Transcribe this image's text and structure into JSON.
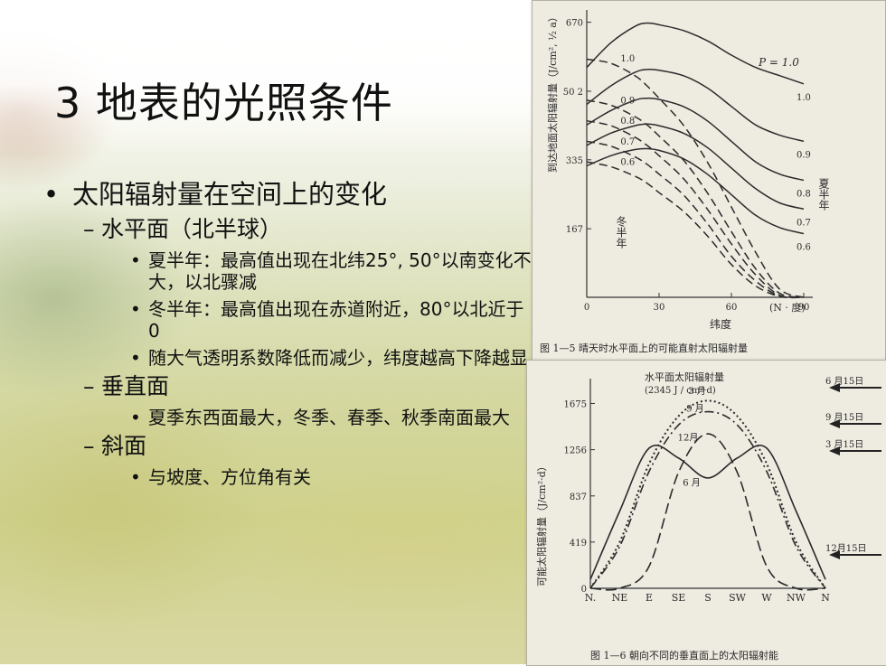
{
  "slide": {
    "title": "3  地表的光照条件",
    "bullets": [
      {
        "text": "太阳辐射量在空间上的变化",
        "children": [
          {
            "text": "水平面（北半球）",
            "children": [
              {
                "text": "夏半年：最高值出现在北纬25°, 50°以南变化不大，以北骤减"
              },
              {
                "text": "冬半年：最高值出现在赤道附近，80°以北近于0"
              },
              {
                "text": "随大气透明系数降低而减少，纬度越高下降越显"
              }
            ]
          },
          {
            "text": "垂直面",
            "children": [
              {
                "text": "夏季东西面最大，冬季、春季、秋季南面最大"
              }
            ]
          },
          {
            "text": "斜面",
            "children": [
              {
                "text": "与坡度、方位角有关"
              }
            ]
          }
        ]
      }
    ]
  },
  "figure1": {
    "caption": "图 1—5   晴天时水平面上的可能直射太阳辐射量",
    "ylabel": "到达地面太阳辐射量（J/cm², ½ a）",
    "xlabel": "纬度",
    "x_unit": "(N · 度)",
    "summer_label": "夏半年",
    "winter_label": "冬半年",
    "p_label": "P = 1.0",
    "chart_data": {
      "type": "line",
      "xlim": [
        0,
        90
      ],
      "ylim": [
        0,
        700
      ],
      "x_ticks": [
        0,
        30,
        60,
        90
      ],
      "y_ticks": [
        167,
        335,
        502,
        670
      ],
      "y_tick_labels": [
        "167",
        "335",
        "50 2",
        "670"
      ],
      "x": [
        0,
        10,
        20,
        25,
        30,
        40,
        50,
        60,
        70,
        80,
        90
      ],
      "series": [
        {
          "name": "1.0",
          "season": "summer",
          "values": [
            560,
            620,
            660,
            668,
            664,
            650,
            625,
            590,
            560,
            540,
            520
          ]
        },
        {
          "name": "0.9",
          "season": "summer",
          "values": [
            470,
            515,
            548,
            555,
            553,
            540,
            510,
            465,
            420,
            395,
            380
          ]
        },
        {
          "name": "0.8",
          "season": "summer",
          "values": [
            420,
            455,
            480,
            485,
            482,
            465,
            430,
            380,
            330,
            300,
            285
          ]
        },
        {
          "name": "0.7",
          "season": "summer",
          "values": [
            370,
            400,
            418,
            422,
            418,
            400,
            365,
            315,
            265,
            230,
            215
          ]
        },
        {
          "name": "0.6",
          "season": "summer",
          "values": [
            320,
            345,
            360,
            362,
            358,
            338,
            300,
            250,
            200,
            170,
            155
          ]
        },
        {
          "name": "1.0",
          "season": "winter",
          "values": [
            580,
            570,
            540,
            515,
            485,
            420,
            330,
            220,
            110,
            20,
            0
          ]
        },
        {
          "name": "0.9",
          "season": "winter",
          "values": [
            480,
            468,
            440,
            420,
            393,
            335,
            255,
            160,
            70,
            10,
            0
          ]
        },
        {
          "name": "0.8",
          "season": "winter",
          "values": [
            430,
            418,
            390,
            370,
            345,
            290,
            215,
            130,
            55,
            5,
            0
          ]
        },
        {
          "name": "0.7",
          "season": "winter",
          "values": [
            380,
            368,
            342,
            324,
            300,
            250,
            180,
            100,
            40,
            3,
            0
          ]
        },
        {
          "name": "0.6",
          "season": "winter",
          "values": [
            330,
            318,
            295,
            278,
            255,
            210,
            150,
            80,
            28,
            2,
            0
          ]
        }
      ]
    }
  },
  "figure2": {
    "caption": "图 1—6   朝向不同的垂直面上的太阳辐射能",
    "ylabel": "可能太阳辐射量（J/cm²·d）",
    "legend_title": "水平面太阳辐射量",
    "legend_unit": "(2345 J / cm²·d)",
    "arrows": [
      "6 月15日",
      "9 月15日",
      "3 月15日",
      "12月15日"
    ],
    "chart_data": {
      "type": "line",
      "categories": [
        "N.",
        "NE",
        "E",
        "SE",
        "S",
        "SW",
        "W",
        "NW",
        "N"
      ],
      "ylim": [
        0,
        1900
      ],
      "y_ticks": [
        0,
        419,
        837,
        1256,
        1675
      ],
      "series": [
        {
          "name": "6 月",
          "values": [
            80,
            700,
            1270,
            1180,
            1000,
            1180,
            1270,
            700,
            80
          ]
        },
        {
          "name": "3 月",
          "values": [
            0,
            420,
            1130,
            1560,
            1700,
            1560,
            1130,
            420,
            0
          ]
        },
        {
          "name": "9 月",
          "values": [
            0,
            380,
            1060,
            1480,
            1600,
            1480,
            1060,
            380,
            0
          ]
        },
        {
          "name": "12月",
          "values": [
            0,
            0,
            200,
            1050,
            1400,
            1050,
            200,
            0,
            0
          ]
        }
      ],
      "curve_labels": [
        "3 月",
        "9 月",
        "12月",
        "6 月"
      ]
    }
  }
}
